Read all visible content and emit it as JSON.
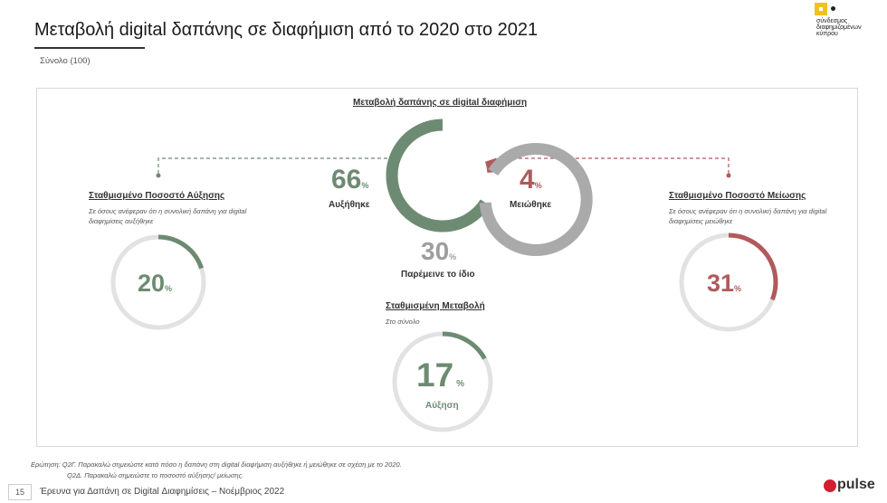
{
  "header": {
    "title": "Μεταβολή digital δαπάνης σε διαφήμιση από το 2020 στο 2021",
    "base": "Σύνολο (100)",
    "logo_text": "σύνδεσμος διαφημιζομένων κύπρου"
  },
  "colors": {
    "green": "#6d8b72",
    "red": "#b05a5c",
    "grey": "#aaaaaa",
    "track": "#e2e2e2",
    "dash_green": "#6d8b72",
    "dash_red": "#b05a5c"
  },
  "chart_data": [
    {
      "type": "pie",
      "title": "Μεταβολή δαπάνης σε digital διαφήμιση",
      "slices": [
        {
          "label": "Αυξήθηκε",
          "value": 66,
          "display": "66",
          "color": "#6d8b72"
        },
        {
          "label": "Μειώθηκε",
          "value": 4,
          "display": "4",
          "color": "#b05a5c"
        },
        {
          "label": "Παρέμεινε το ίδιο",
          "value": 30,
          "display": "30",
          "color": "#aaaaaa"
        }
      ]
    },
    {
      "type": "pie",
      "title": "Σταθμισμένο Ποσοστό Αύξησης",
      "subtitle": "Σε όσους ανέφεραν ότι η συνολική δαπάνη για digital διαφημίσεις αυξήθηκε",
      "value": 20,
      "display": "20",
      "color": "#6d8b72"
    },
    {
      "type": "pie",
      "title": "Σταθμισμένο Ποσοστό Μείωσης",
      "subtitle": "Σε όσους ανέφεραν ότι η συνολική δαπάνη για digital διαφημίσεις μειώθηκε",
      "value": 31,
      "display": "31",
      "color": "#b05a5c"
    },
    {
      "type": "pie",
      "title": "Σταθμισμένη Μεταβολή",
      "subtitle": "Στο σύνολο",
      "value": 17,
      "display": "17",
      "label": "Αύξηση",
      "color": "#6d8b72"
    }
  ],
  "labels": {
    "percent": "%",
    "increased": "Αυξήθηκε",
    "decreased": "Μειώθηκε",
    "same": "Παρέμεινε το ίδιο",
    "increase": "Αύξηση"
  },
  "footer": {
    "question_1": "Ερώτηση: Q2Γ. Παρακαλώ σημειώστε κατά πόσο η δαπάνη στη digital διαφήμιση αυξήθηκε ή μειώθηκε σε σχέση με το 2020.",
    "question_2": "Q2Δ. Παρακαλώ σημειώστε το ποσοστό αύξησης/ μείωσης.",
    "page_number": "15",
    "survey_title": "Έρευνα για Δαπάνη σε Digital Διαφημίσεις – Νοέμβριος 2022",
    "brand": "pulse"
  }
}
